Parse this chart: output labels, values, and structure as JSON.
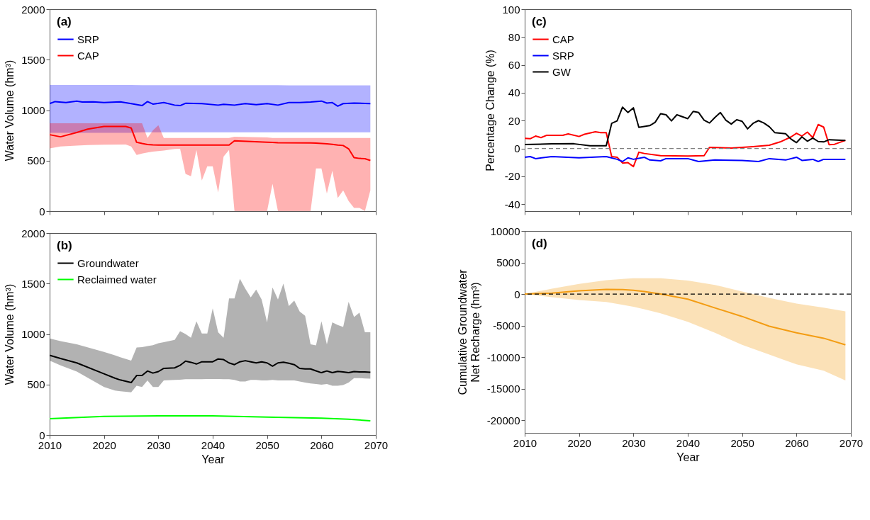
{
  "chart_data": [
    {
      "type": "line",
      "title": "(a)",
      "ylabel": "Water Volume (hm³)",
      "xlim": [
        2010,
        2070
      ],
      "xticks": [
        2010,
        2020,
        2030,
        2040,
        2050,
        2060,
        2070
      ],
      "ylim": [
        0,
        2000
      ],
      "yticks": [
        0,
        500,
        1000,
        1500,
        2000
      ],
      "tick_labels": "y",
      "grid": false,
      "legend": "top left",
      "marker": "none",
      "line_style": "solid",
      "series": [
        {
          "name": "SRP",
          "color": "#0000ff",
          "x": [
            2010,
            2011,
            2013,
            2015,
            2016,
            2018,
            2020,
            2023,
            2025,
            2027,
            2028,
            2029,
            2031,
            2033,
            2034,
            2035,
            2038,
            2041,
            2042,
            2044,
            2046,
            2048,
            2050,
            2052,
            2054,
            2056,
            2058,
            2060,
            2061,
            2062,
            2063,
            2064,
            2066,
            2069
          ],
          "values": [
            1065,
            1085,
            1075,
            1090,
            1080,
            1082,
            1075,
            1082,
            1065,
            1045,
            1085,
            1060,
            1075,
            1050,
            1045,
            1068,
            1065,
            1050,
            1058,
            1050,
            1065,
            1055,
            1065,
            1050,
            1075,
            1075,
            1080,
            1090,
            1070,
            1075,
            1040,
            1065,
            1070,
            1065
          ],
          "upper": [
            1250,
            1250,
            1250,
            1250,
            1250,
            1250,
            1250,
            1250,
            1250,
            1248,
            1248,
            1248,
            1248,
            1248,
            1248,
            1248,
            1248,
            1248,
            1248,
            1248,
            1248,
            1248,
            1248,
            1248,
            1246,
            1246,
            1246,
            1246,
            1246,
            1246,
            1246,
            1246,
            1246,
            1246
          ],
          "lower": [
            775,
            775,
            775,
            775,
            775,
            775,
            775,
            775,
            775,
            780,
            780,
            780,
            780,
            780,
            780,
            780,
            780,
            780,
            780,
            780,
            780,
            780,
            780,
            780,
            780,
            780,
            780,
            780,
            780,
            780,
            780,
            780,
            780,
            780
          ]
        },
        {
          "name": "CAP",
          "color": "#ff0000",
          "x": [
            2010,
            2012,
            2015,
            2017,
            2020,
            2024,
            2025,
            2026,
            2027,
            2028,
            2029,
            2030,
            2031,
            2033,
            2034,
            2035,
            2036,
            2037,
            2038,
            2039,
            2040,
            2041,
            2042,
            2043,
            2044,
            2050,
            2051,
            2052,
            2058,
            2059,
            2060,
            2061,
            2062,
            2063,
            2064,
            2065,
            2066,
            2067,
            2068,
            2069
          ],
          "values": [
            757,
            736,
            779,
            812,
            838,
            838,
            823,
            682,
            670,
            660,
            656,
            654,
            654,
            654,
            654,
            654,
            654,
            654,
            654,
            654,
            654,
            654,
            654,
            654,
            697,
            682,
            680,
            678,
            675,
            673,
            671,
            667,
            662,
            654,
            650,
            617,
            530,
            522,
            519,
            502
          ],
          "upper": [
            870,
            870,
            870,
            870,
            870,
            870,
            870,
            870,
            870,
            725,
            800,
            851,
            725,
            725,
            725,
            725,
            725,
            725,
            725,
            725,
            725,
            725,
            725,
            725,
            736,
            730,
            725,
            725,
            725,
            725,
            725,
            725,
            725,
            725,
            725,
            725,
            725,
            725,
            725,
            725
          ],
          "lower": [
            621,
            640,
            649,
            655,
            658,
            660,
            640,
            556,
            570,
            580,
            590,
            595,
            600,
            615,
            617,
            368,
            346,
            606,
            303,
            444,
            444,
            184,
            541,
            606,
            0,
            0,
            270,
            0,
            0,
            422,
            422,
            173,
            400,
            130,
            206,
            100,
            32,
            32,
            0,
            206
          ]
        }
      ]
    },
    {
      "type": "line",
      "title": "(b)",
      "xlabel": "Year",
      "ylabel": "Water Volume (hm³)",
      "xlim": [
        2010,
        2070
      ],
      "xticks": [
        2010,
        2020,
        2030,
        2040,
        2050,
        2060,
        2070
      ],
      "ylim": [
        0,
        2000
      ],
      "yticks": [
        0,
        500,
        1000,
        1500,
        2000
      ],
      "grid": false,
      "legend": "top left",
      "marker": "none",
      "line_style": "solid",
      "series": [
        {
          "name": "Groundwater",
          "color": "#000000",
          "x": [
            2010,
            2012,
            2015,
            2020,
            2022,
            2023,
            2025,
            2026,
            2027,
            2028,
            2029,
            2030,
            2031,
            2033,
            2034,
            2035,
            2036,
            2037,
            2038,
            2039,
            2040,
            2041,
            2042,
            2043,
            2044,
            2045,
            2046,
            2047,
            2048,
            2049,
            2050,
            2051,
            2052,
            2053,
            2054,
            2055,
            2056,
            2057,
            2058,
            2059,
            2060,
            2061,
            2062,
            2063,
            2064,
            2065,
            2066,
            2067,
            2068,
            2069
          ],
          "values": [
            790,
            758,
            714,
            606,
            563,
            545,
            519,
            589,
            589,
            634,
            613,
            628,
            660,
            665,
            690,
            732,
            720,
            703,
            725,
            725,
            725,
            753,
            747,
            714,
            697,
            725,
            736,
            725,
            714,
            725,
            714,
            682,
            714,
            721,
            710,
            697,
            660,
            654,
            654,
            635,
            617,
            634,
            617,
            630,
            625,
            617,
            628,
            625,
            625,
            621
          ],
          "upper": [
            957,
            930,
            898,
            822,
            790,
            770,
            736,
            866,
            870,
            880,
            890,
            909,
            920,
            942,
            1028,
            1000,
            963,
            1126,
            1006,
            1006,
            1255,
            1017,
            963,
            1353,
            1353,
            1548,
            1450,
            1364,
            1440,
            1342,
            1115,
            1461,
            1342,
            1500,
            1277,
            1331,
            1223,
            1180,
            898,
            887,
            1126,
            898,
            1115,
            1090,
            1071,
            1320,
            1169,
            1212,
            1017,
            1017
          ],
          "lower": [
            736,
            690,
            628,
            476,
            440,
            433,
            422,
            487,
            476,
            541,
            476,
            476,
            541,
            545,
            548,
            552,
            552,
            552,
            552,
            555,
            555,
            555,
            552,
            552,
            545,
            530,
            530,
            545,
            545,
            541,
            541,
            545,
            541,
            541,
            541,
            541,
            530,
            520,
            510,
            505,
            498,
            505,
            487,
            487,
            495,
            519,
            563,
            563,
            560,
            558
          ]
        },
        {
          "name": "Reclaimed water",
          "color": "#00ff00",
          "x": [
            2010,
            2020,
            2030,
            2040,
            2050,
            2060,
            2065,
            2069
          ],
          "values": [
            162,
            184,
            190,
            190,
            177,
            167,
            156,
            141
          ]
        }
      ]
    },
    {
      "type": "line",
      "title": "(c)",
      "ylabel": "Percentage Change (%)",
      "xlim": [
        2010,
        2070
      ],
      "xticks": [
        2010,
        2020,
        2030,
        2040,
        2050,
        2060,
        2070
      ],
      "ylim": [
        -45,
        100
      ],
      "yticks": [
        -40,
        -20,
        0,
        20,
        40,
        60,
        80,
        100
      ],
      "tick_labels": "y",
      "grid": false,
      "legend": "top left",
      "marker": "none",
      "line_style": "solid",
      "ref_lines": [
        {
          "axis": "y",
          "value": 0,
          "color": "#808080",
          "line_style": "dashed"
        }
      ],
      "series": [
        {
          "name": "CAP",
          "color": "#ff0000",
          "x": [
            2010,
            2011,
            2012,
            2013,
            2014,
            2017,
            2018,
            2020,
            2021,
            2023,
            2024,
            2025,
            2026,
            2027,
            2028,
            2029,
            2030,
            2031,
            2032,
            2035,
            2040,
            2043,
            2044,
            2048,
            2050,
            2052,
            2055,
            2057,
            2059,
            2060,
            2061,
            2062,
            2063,
            2064,
            2065,
            2066,
            2067,
            2069
          ],
          "values": [
            7.3,
            7,
            8.9,
            7.8,
            9.4,
            9.4,
            10.5,
            8.6,
            10.2,
            12,
            11.3,
            11.3,
            -5.8,
            -6.3,
            -10.5,
            -10.2,
            -13,
            -2.7,
            -3.6,
            -5.2,
            -5.5,
            -5.2,
            0.8,
            0.3,
            0.8,
            1.3,
            2.3,
            4.7,
            8.3,
            10.9,
            8.9,
            11.7,
            7.8,
            17.2,
            15.3,
            2.7,
            3,
            5.8
          ]
        },
        {
          "name": "SRP",
          "color": "#0000ff",
          "x": [
            2010,
            2011,
            2012,
            2015,
            2020,
            2025,
            2027,
            2028,
            2029,
            2030,
            2032,
            2033,
            2035,
            2036,
            2040,
            2042,
            2045,
            2050,
            2053,
            2055,
            2058,
            2060,
            2061,
            2063,
            2064,
            2065,
            2069
          ],
          "values": [
            -6.3,
            -5.8,
            -7.3,
            -5.8,
            -6.7,
            -5.8,
            -7.8,
            -9.4,
            -6.7,
            -7.8,
            -6.3,
            -8.3,
            -8.9,
            -7.3,
            -7.3,
            -9.4,
            -8.3,
            -8.6,
            -9.4,
            -7.3,
            -8.3,
            -6.3,
            -8.6,
            -7.8,
            -9.4,
            -7.8,
            -7.8
          ]
        },
        {
          "name": "GW",
          "color": "#000000",
          "x": [
            2010,
            2015,
            2019,
            2022,
            2025,
            2026,
            2027,
            2028,
            2029,
            2030,
            2031,
            2033,
            2034,
            2035,
            2036,
            2037,
            2038,
            2040,
            2041,
            2042,
            2043,
            2044,
            2045,
            2046,
            2047,
            2048,
            2049,
            2050,
            2051,
            2052,
            2053,
            2054,
            2055,
            2056,
            2058,
            2059,
            2060,
            2061,
            2062,
            2063,
            2064,
            2065,
            2066,
            2069
          ],
          "values": [
            2.8,
            3.3,
            3.4,
            1.9,
            1.9,
            18,
            19.8,
            29.7,
            25.8,
            29.2,
            15.2,
            16.4,
            18.8,
            25,
            24.2,
            19.8,
            24.2,
            21.4,
            26.6,
            25.8,
            20.3,
            18.3,
            22.3,
            25.8,
            20.3,
            17.5,
            20.6,
            19.5,
            14.1,
            18,
            20,
            18.3,
            15.6,
            11.4,
            10.6,
            6.7,
            4.2,
            8.3,
            5.2,
            7.5,
            5,
            4.7,
            6.3,
            5.8
          ]
        }
      ]
    },
    {
      "type": "line",
      "title": "(d)",
      "xlabel": "Year",
      "ylabel": "Cumulative Groundwater\nNet Recharge (hm³)",
      "xlim": [
        2010,
        2070
      ],
      "xticks": [
        2010,
        2020,
        2030,
        2040,
        2050,
        2060,
        2070
      ],
      "ylim": [
        -22000,
        10000
      ],
      "yticks": [
        -20000,
        -15000,
        -10000,
        -5000,
        0,
        5000,
        10000
      ],
      "grid": false,
      "legend": false,
      "marker": "none",
      "line_style": "solid",
      "ref_lines": [
        {
          "axis": "y",
          "value": 0,
          "color": "#000000",
          "line_style": "dashed"
        }
      ],
      "series": [
        {
          "color": "#f39c12",
          "x": [
            2010,
            2015,
            2020,
            2025,
            2028,
            2030,
            2032,
            2035,
            2040,
            2045,
            2050,
            2055,
            2060,
            2065,
            2069
          ],
          "values": [
            0,
            150,
            500,
            750,
            700,
            600,
            400,
            0,
            -800,
            -2200,
            -3550,
            -5100,
            -6150,
            -7000,
            -8050
          ],
          "upper": [
            0,
            850,
            1600,
            2200,
            2400,
            2500,
            2500,
            2500,
            2150,
            1450,
            400,
            -600,
            -1500,
            -2150,
            -2750
          ],
          "lower": [
            0,
            -500,
            -950,
            -1250,
            -1700,
            -2000,
            -2400,
            -3050,
            -4400,
            -6150,
            -8050,
            -9600,
            -11150,
            -12150,
            -13700
          ]
        }
      ]
    }
  ]
}
